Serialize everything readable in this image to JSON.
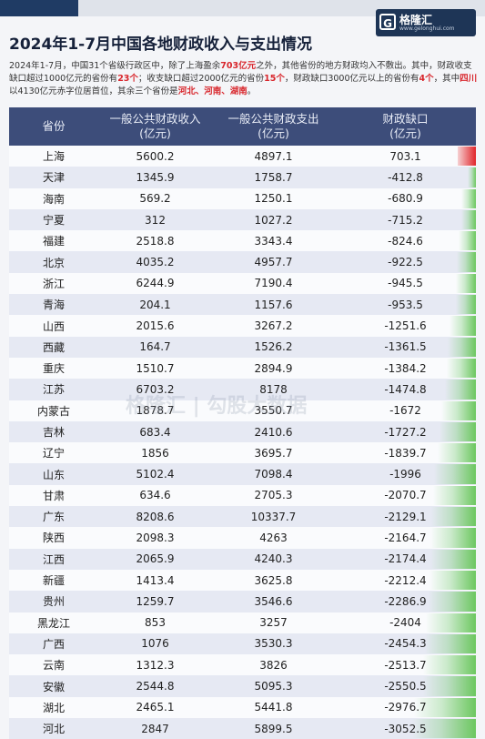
{
  "header": {
    "title": "2024年1-7月中国各地财政收入与支出情况",
    "logo_text": "格隆汇",
    "logo_url": "www.gelonghui.com",
    "watermark": "格隆汇 | 勾股大数据"
  },
  "description": {
    "p1": "2024年1-7月，中国31个省级行政区中，除了上海盈余",
    "h1": "703亿元",
    "p2": "之外，其他省份的地方财政均入不敷出。其中，财政收支缺口超过1000亿元的省份有",
    "h2": "23个",
    "p3": "；收支缺口超过2000亿元的省份",
    "h3": "15个",
    "p4": "，财政缺口3000亿元以上的省份有",
    "h4": "4个",
    "p5": "，其中",
    "h5": "四川",
    "p6": "以4130亿元赤字位居首位，其余三个省份是",
    "h6": "河北、河南、湖南",
    "p7": "。"
  },
  "table": {
    "headers": [
      {
        "line1": "省份",
        "line2": ""
      },
      {
        "line1": "一般公共财政收入",
        "line2": "(亿元)"
      },
      {
        "line1": "一般公共财政支出",
        "line2": "(亿元)"
      },
      {
        "line1": "财政缺口",
        "line2": "(亿元)"
      }
    ]
  },
  "colors": {
    "header_bg": "#3d4d7a",
    "surplus_bar": "#e0252a",
    "deficit_bar": "#6cc75f",
    "highlight": "#d8252b"
  },
  "chart_data": {
    "type": "table",
    "title": "2024年1-7月中国各地财政收入与支出情况",
    "columns": [
      "省份",
      "一般公共财政收入(亿元)",
      "一般公共财政支出(亿元)",
      "财政缺口(亿元)"
    ],
    "rows": [
      {
        "province": "上海",
        "revenue": "5600.2",
        "expenditure": "4897.1",
        "gap": "703.1"
      },
      {
        "province": "天津",
        "revenue": "1345.9",
        "expenditure": "1758.7",
        "gap": "-412.8"
      },
      {
        "province": "海南",
        "revenue": "569.2",
        "expenditure": "1250.1",
        "gap": "-680.9"
      },
      {
        "province": "宁夏",
        "revenue": "312",
        "expenditure": "1027.2",
        "gap": "-715.2"
      },
      {
        "province": "福建",
        "revenue": "2518.8",
        "expenditure": "3343.4",
        "gap": "-824.6"
      },
      {
        "province": "北京",
        "revenue": "4035.2",
        "expenditure": "4957.7",
        "gap": "-922.5"
      },
      {
        "province": "浙江",
        "revenue": "6244.9",
        "expenditure": "7190.4",
        "gap": "-945.5"
      },
      {
        "province": "青海",
        "revenue": "204.1",
        "expenditure": "1157.6",
        "gap": "-953.5"
      },
      {
        "province": "山西",
        "revenue": "2015.6",
        "expenditure": "3267.2",
        "gap": "-1251.6"
      },
      {
        "province": "西藏",
        "revenue": "164.7",
        "expenditure": "1526.2",
        "gap": "-1361.5"
      },
      {
        "province": "重庆",
        "revenue": "1510.7",
        "expenditure": "2894.9",
        "gap": "-1384.2"
      },
      {
        "province": "江苏",
        "revenue": "6703.2",
        "expenditure": "8178",
        "gap": "-1474.8"
      },
      {
        "province": "内蒙古",
        "revenue": "1878.7",
        "expenditure": "3550.7",
        "gap": "-1672"
      },
      {
        "province": "吉林",
        "revenue": "683.4",
        "expenditure": "2410.6",
        "gap": "-1727.2"
      },
      {
        "province": "辽宁",
        "revenue": "1856",
        "expenditure": "3695.7",
        "gap": "-1839.7"
      },
      {
        "province": "山东",
        "revenue": "5102.4",
        "expenditure": "7098.4",
        "gap": "-1996"
      },
      {
        "province": "甘肃",
        "revenue": "634.6",
        "expenditure": "2705.3",
        "gap": "-2070.7"
      },
      {
        "province": "广东",
        "revenue": "8208.6",
        "expenditure": "10337.7",
        "gap": "-2129.1"
      },
      {
        "province": "陕西",
        "revenue": "2098.3",
        "expenditure": "4263",
        "gap": "-2164.7"
      },
      {
        "province": "江西",
        "revenue": "2065.9",
        "expenditure": "4240.3",
        "gap": "-2174.4"
      },
      {
        "province": "新疆",
        "revenue": "1413.4",
        "expenditure": "3625.8",
        "gap": "-2212.4"
      },
      {
        "province": "贵州",
        "revenue": "1259.7",
        "expenditure": "3546.6",
        "gap": "-2286.9"
      },
      {
        "province": "黑龙江",
        "revenue": "853",
        "expenditure": "3257",
        "gap": "-2404"
      },
      {
        "province": "广西",
        "revenue": "1076",
        "expenditure": "3530.3",
        "gap": "-2454.3"
      },
      {
        "province": "云南",
        "revenue": "1312.3",
        "expenditure": "3826",
        "gap": "-2513.7"
      },
      {
        "province": "安徽",
        "revenue": "2544.8",
        "expenditure": "5095.3",
        "gap": "-2550.5"
      },
      {
        "province": "湖北",
        "revenue": "2465.1",
        "expenditure": "5441.8",
        "gap": "-2976.7"
      },
      {
        "province": "河北",
        "revenue": "2847",
        "expenditure": "5899.5",
        "gap": "-3052.5"
      }
    ]
  }
}
